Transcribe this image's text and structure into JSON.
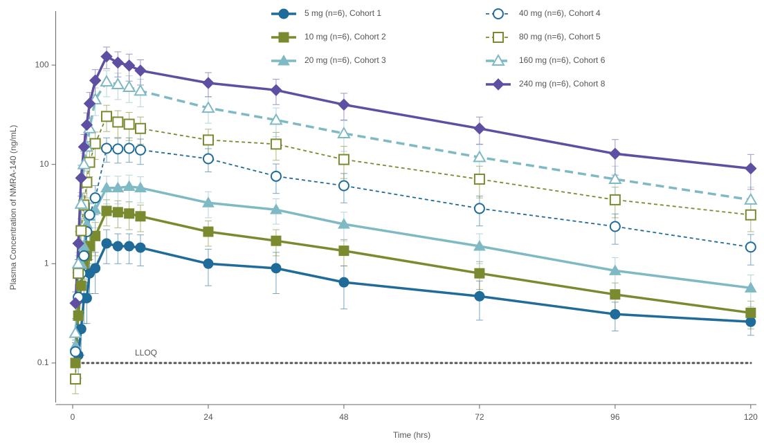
{
  "chart_data": {
    "type": "line",
    "x_label": "Time (hrs)",
    "y_label": "Plasma Concentration of NMRA-140 (ng/mL)",
    "yscale": "log",
    "xlim": [
      -3,
      121
    ],
    "ylim": [
      0.04,
      350
    ],
    "xticks": [
      0,
      24,
      48,
      72,
      96,
      120
    ],
    "yticks": [
      0.1,
      1,
      10,
      100
    ],
    "x": [
      0.5,
      1,
      1.5,
      2,
      2.5,
      3,
      4,
      6,
      8,
      10,
      12,
      24,
      36,
      48,
      72,
      96,
      120
    ],
    "reference_line": {
      "value": 0.1,
      "label": "LLOQ"
    },
    "series": [
      {
        "name": "5 mg (n=6), Cohort 1",
        "color": "#1f6b9a",
        "marker": "circle",
        "fill": "filled",
        "dash": "solid",
        "values": [
          0.13,
          0.12,
          0.22,
          0.45,
          0.45,
          0.8,
          0.9,
          1.6,
          1.5,
          1.5,
          1.45,
          1.0,
          0.9,
          0.65,
          0.47,
          0.31,
          0.26
        ],
        "errors": [
          0.03,
          0.05,
          0.1,
          0.2,
          0.2,
          0.3,
          0.4,
          0.6,
          0.5,
          0.5,
          0.5,
          0.4,
          0.4,
          0.3,
          0.2,
          0.1,
          0.07
        ]
      },
      {
        "name": "10 mg (n=6), Cohort 2",
        "color": "#7a8a2e",
        "marker": "square",
        "fill": "filled",
        "dash": "solid",
        "values": [
          0.1,
          0.3,
          0.6,
          1.0,
          1.2,
          1.5,
          1.9,
          3.4,
          3.3,
          3.2,
          3.0,
          2.1,
          1.7,
          1.35,
          0.8,
          0.49,
          0.32
        ],
        "errors": [
          0.03,
          0.1,
          0.2,
          0.4,
          0.4,
          0.5,
          0.7,
          1.0,
          1.0,
          1.0,
          0.9,
          0.6,
          0.5,
          0.4,
          0.25,
          0.15,
          0.1
        ]
      },
      {
        "name": "20 mg (n=6), Cohort 3",
        "color": "#7fbac4",
        "marker": "triangle",
        "fill": "filled",
        "dash": "solid",
        "values": [
          0.15,
          0.9,
          1.0,
          1.5,
          2.5,
          3.0,
          3.5,
          5.8,
          5.8,
          6.0,
          5.8,
          4.1,
          3.5,
          2.5,
          1.5,
          0.85,
          0.57
        ],
        "errors": [
          0.05,
          0.3,
          0.4,
          0.5,
          0.8,
          1.0,
          1.2,
          1.8,
          1.8,
          1.8,
          1.7,
          1.2,
          1.0,
          0.8,
          0.5,
          0.3,
          0.2
        ]
      },
      {
        "name": "40 mg (n=6), Cohort 4",
        "color": "#1f6b9a",
        "marker": "circle",
        "fill": "open",
        "dash": "dashed",
        "values": [
          0.13,
          0.46,
          0.8,
          1.2,
          2.1,
          3.1,
          4.6,
          14.5,
          14.3,
          14.5,
          14.0,
          11.4,
          7.6,
          6.1,
          3.6,
          2.37,
          1.47
        ],
        "errors": [
          0.04,
          0.15,
          0.3,
          0.5,
          0.8,
          1.0,
          1.5,
          4,
          4,
          4,
          4,
          3,
          2.5,
          2,
          1.2,
          0.8,
          0.5
        ]
      },
      {
        "name": "80 mg (n=6), Cohort 5",
        "color": "#7a8a2e",
        "marker": "square",
        "fill": "open",
        "dash": "dashed",
        "values": [
          0.069,
          0.8,
          2.15,
          3.9,
          6.6,
          10.5,
          16.2,
          30.4,
          26.7,
          25.4,
          23,
          17.6,
          16,
          11.2,
          7.1,
          4.4,
          3.1
        ],
        "errors": [
          0.02,
          0.3,
          0.7,
          1.2,
          2,
          3,
          5,
          9,
          8,
          8,
          7,
          5,
          5,
          4,
          2.5,
          1.5,
          1
        ]
      },
      {
        "name": "160 mg (n=6), Cohort 6",
        "color": "#7fbac4",
        "marker": "triangle",
        "fill": "open",
        "dash": "dashed-thick",
        "values": [
          0.2,
          1.0,
          4.0,
          10,
          15,
          23,
          45,
          68,
          64,
          60,
          55,
          37,
          28,
          20.5,
          11.8,
          7.1,
          4.4
        ],
        "errors": [
          0.07,
          0.3,
          1.2,
          3,
          5,
          7,
          14,
          20,
          19,
          18,
          17,
          11,
          9,
          7,
          4,
          2.5,
          1.5
        ]
      },
      {
        "name": "240 mg (n=6), Cohort 8",
        "color": "#5e4fa2",
        "marker": "diamond",
        "fill": "filled",
        "dash": "solid",
        "values": [
          0.4,
          1.6,
          7.3,
          15,
          25,
          41,
          70,
          122,
          106,
          99,
          88,
          66,
          56,
          40,
          23,
          12.8,
          9.1
        ],
        "errors": [
          0.12,
          0.5,
          2.5,
          5,
          8,
          12,
          20,
          30,
          30,
          30,
          25,
          18,
          16,
          12,
          7,
          5,
          3.5
        ]
      }
    ]
  }
}
